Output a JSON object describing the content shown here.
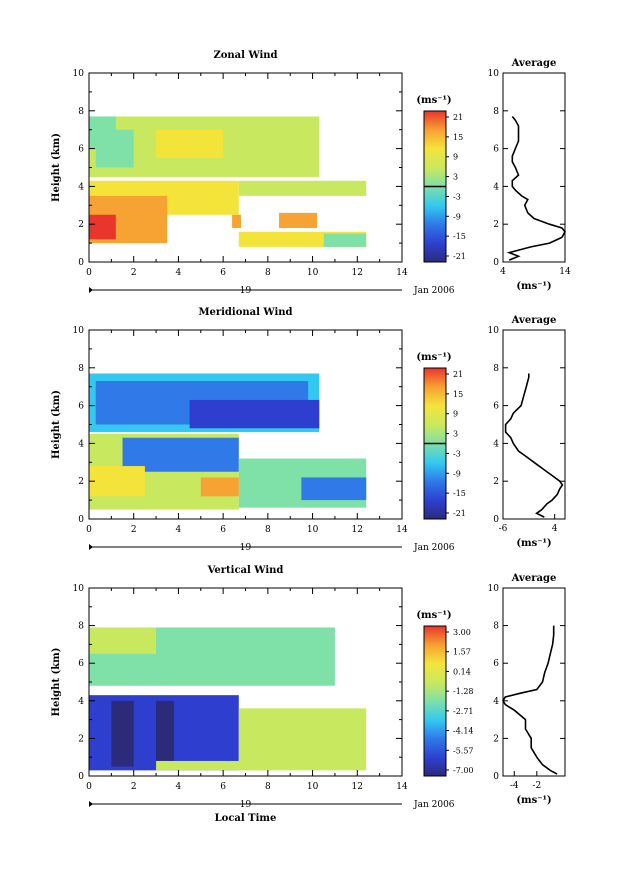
{
  "chart_data": [
    {
      "type": "heatmap",
      "title": "Zonal Wind",
      "xlabel": "",
      "ylabel": "Height (km)",
      "xlim": [
        0,
        14
      ],
      "ylim": [
        0,
        10
      ],
      "x_ticks": [
        "0",
        "2",
        "4",
        "6",
        "8",
        "10",
        "12",
        "14"
      ],
      "y_ticks": [
        "0",
        "2",
        "4",
        "6",
        "8",
        "10"
      ],
      "date_marker": "19",
      "date_label": "Jan 2006",
      "colorbar": {
        "unit": "(ms⁻¹)",
        "labels": [
          "21",
          "15",
          "9",
          "3",
          "-3",
          "-9",
          "-15",
          "-21"
        ],
        "range": [
          -21,
          21
        ],
        "zero_line": true
      },
      "average_profile": {
        "title": "Average",
        "xlabel": "(ms⁻¹)",
        "xlim": [
          4,
          14
        ],
        "x_ticks": [
          "4",
          "14"
        ],
        "y_ticks": [
          "0",
          "2",
          "4",
          "6",
          "8",
          "10"
        ],
        "height": [
          0.1,
          0.3,
          0.5,
          0.8,
          1.0,
          1.3,
          1.6,
          1.8,
          2.0,
          2.3,
          2.6,
          3.0,
          3.3,
          3.5,
          3.8,
          4.0,
          4.3,
          4.6,
          5.0,
          5.3,
          5.6,
          6.0,
          6.4,
          6.8,
          7.2,
          7.5,
          7.7
        ],
        "value": [
          5.0,
          6.5,
          5.0,
          8.5,
          11.5,
          13.5,
          14.0,
          13.5,
          11.5,
          9.0,
          8.0,
          7.5,
          8.0,
          7.0,
          6.0,
          5.5,
          5.5,
          6.5,
          6.0,
          5.5,
          5.5,
          6.0,
          6.5,
          6.5,
          6.5,
          6.0,
          5.5
        ]
      }
    },
    {
      "type": "heatmap",
      "title": "Meridional Wind",
      "xlabel": "",
      "ylabel": "Height (km)",
      "xlim": [
        0,
        14
      ],
      "ylim": [
        0,
        10
      ],
      "x_ticks": [
        "0",
        "2",
        "4",
        "6",
        "8",
        "10",
        "12",
        "14"
      ],
      "y_ticks": [
        "0",
        "2",
        "4",
        "6",
        "8",
        "10"
      ],
      "date_marker": "19",
      "date_label": "Jan 2006",
      "colorbar": {
        "unit": "(ms⁻¹)",
        "labels": [
          "21",
          "15",
          "9",
          "3",
          "-3",
          "-9",
          "-15",
          "-21"
        ],
        "range": [
          -21,
          21
        ],
        "zero_line": true
      },
      "average_profile": {
        "title": "Average",
        "xlabel": "(ms⁻¹)",
        "xlim": [
          -6,
          6
        ],
        "x_ticks": [
          "-6",
          "4"
        ],
        "y_ticks": [
          "0",
          "2",
          "4",
          "6",
          "8",
          "10"
        ],
        "height": [
          0.1,
          0.3,
          0.5,
          0.8,
          1.0,
          1.3,
          1.6,
          1.8,
          2.0,
          2.3,
          2.6,
          3.0,
          3.3,
          3.6,
          4.0,
          4.3,
          4.6,
          5.0,
          5.3,
          5.6,
          6.0,
          6.5,
          7.0,
          7.5,
          7.7
        ],
        "value": [
          2.0,
          0.5,
          1.5,
          2.5,
          3.5,
          4.5,
          5.0,
          5.5,
          5.0,
          3.5,
          2.0,
          0.0,
          -1.5,
          -3.0,
          -4.0,
          -4.5,
          -5.5,
          -5.5,
          -4.5,
          -4.0,
          -2.5,
          -2.0,
          -1.5,
          -1.0,
          -1.0
        ]
      }
    },
    {
      "type": "heatmap",
      "title": "Vertical Wind",
      "xlabel": "Local Time",
      "ylabel": "Height (km)",
      "xlim": [
        0,
        14
      ],
      "ylim": [
        0,
        10
      ],
      "x_ticks": [
        "0",
        "2",
        "4",
        "6",
        "8",
        "10",
        "12",
        "14"
      ],
      "y_ticks": [
        "0",
        "2",
        "4",
        "6",
        "8",
        "10"
      ],
      "date_marker": "19",
      "date_label": "Jan 2006",
      "colorbar": {
        "unit": "(ms⁻¹)",
        "labels": [
          "3.00",
          "1.57",
          "0.14",
          "-1.28",
          "-2.71",
          "-4.14",
          "-5.57",
          "-7.00"
        ],
        "range": [
          -7.0,
          3.0
        ],
        "zero_line": false
      },
      "average_profile": {
        "title": "Average",
        "xlabel": "(ms⁻¹)",
        "xlim": [
          -5,
          0.5
        ],
        "x_ticks": [
          "-4",
          "-2"
        ],
        "y_ticks": [
          "0",
          "2",
          "4",
          "6",
          "8",
          "10"
        ],
        "height": [
          0.1,
          0.3,
          0.6,
          1.0,
          1.5,
          2.0,
          2.5,
          3.0,
          3.5,
          3.8,
          4.0,
          4.2,
          4.4,
          4.6,
          5.0,
          5.5,
          6.0,
          6.5,
          7.0,
          7.5,
          8.0
        ],
        "value": [
          -0.2,
          -0.8,
          -1.5,
          -2.0,
          -2.5,
          -2.5,
          -3.0,
          -3.0,
          -4.0,
          -4.8,
          -5.0,
          -4.8,
          -3.5,
          -2.0,
          -1.5,
          -1.3,
          -1.0,
          -0.8,
          -0.6,
          -0.5,
          -0.5
        ]
      }
    }
  ]
}
